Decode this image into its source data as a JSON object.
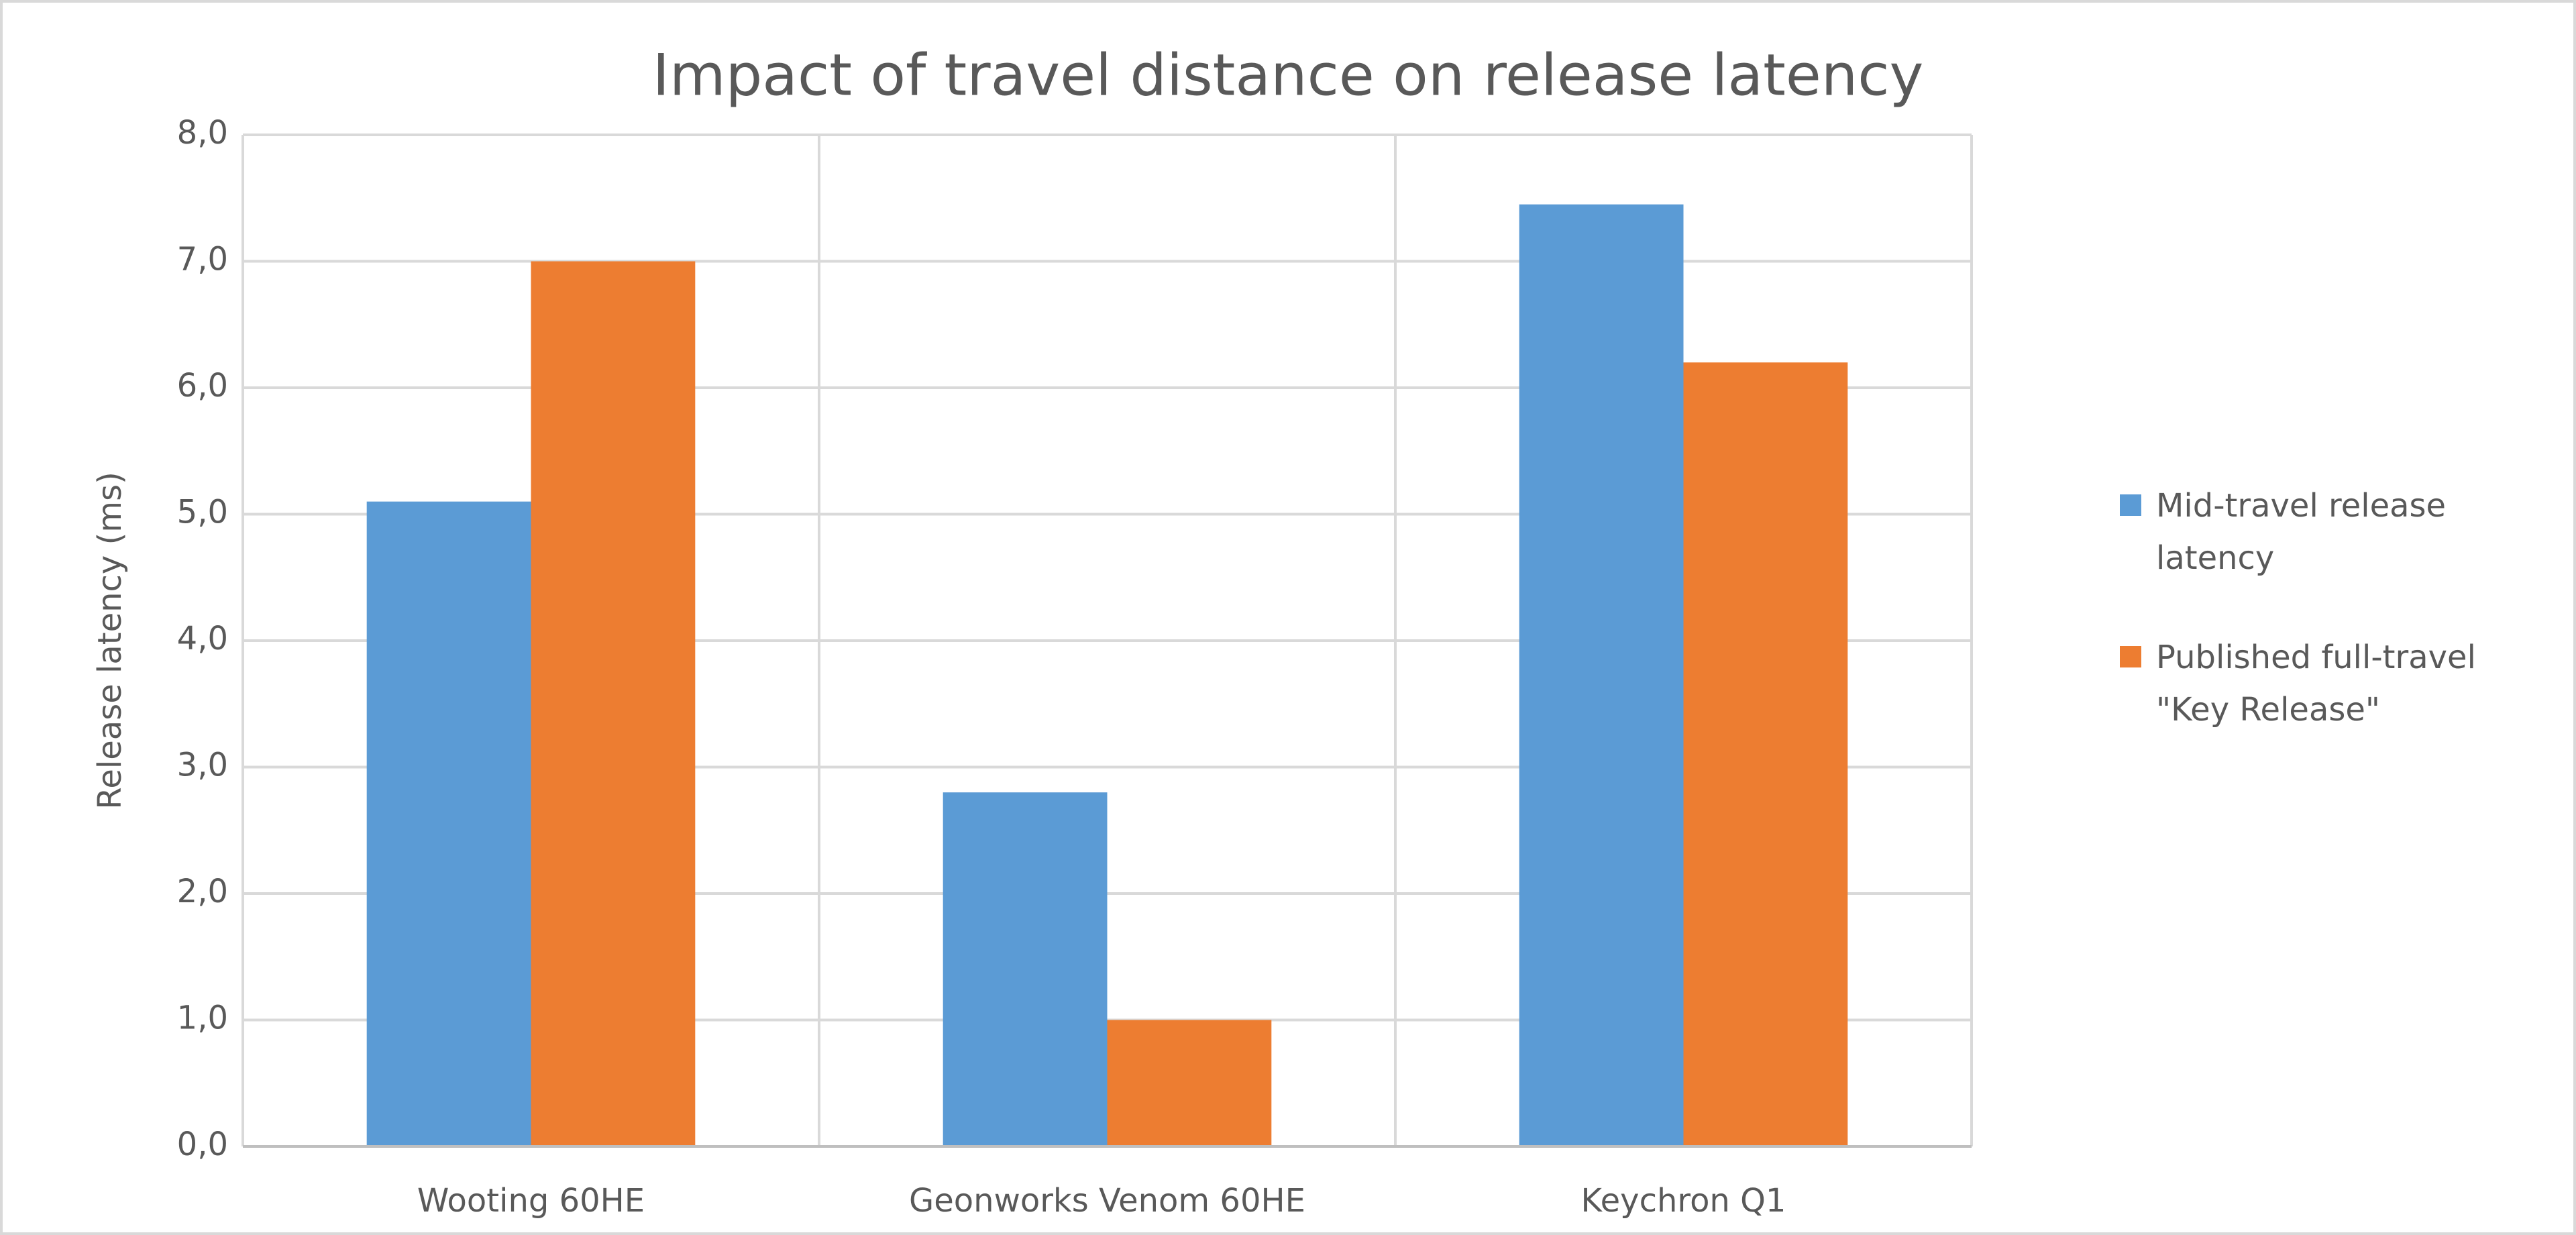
{
  "chart_data": {
    "type": "bar",
    "title": "Impact of travel distance on release latency",
    "y_label": "Release latency (ms)",
    "categories": [
      "Wooting 60HE",
      "Geonworks Venom 60HE",
      "Keychron Q1"
    ],
    "series": [
      {
        "name": "Mid-travel release latency",
        "color": "#5b9bd5",
        "values": [
          5.1,
          2.8,
          7.45
        ]
      },
      {
        "name": "Published full-travel \"Key Release\"",
        "color": "#ed7d31",
        "values": [
          7.0,
          1.0,
          6.2
        ]
      }
    ],
    "ylim": [
      0,
      8
    ],
    "yticks": [
      {
        "value": 0,
        "label": "0,0"
      },
      {
        "value": 1,
        "label": "1,0"
      },
      {
        "value": 2,
        "label": "2,0"
      },
      {
        "value": 3,
        "label": "3,0"
      },
      {
        "value": 4,
        "label": "4,0"
      },
      {
        "value": 5,
        "label": "5,0"
      },
      {
        "value": 6,
        "label": "6,0"
      },
      {
        "value": 7,
        "label": "7,0"
      },
      {
        "value": 8,
        "label": "8,0"
      }
    ],
    "grid": true,
    "legend": "right"
  }
}
